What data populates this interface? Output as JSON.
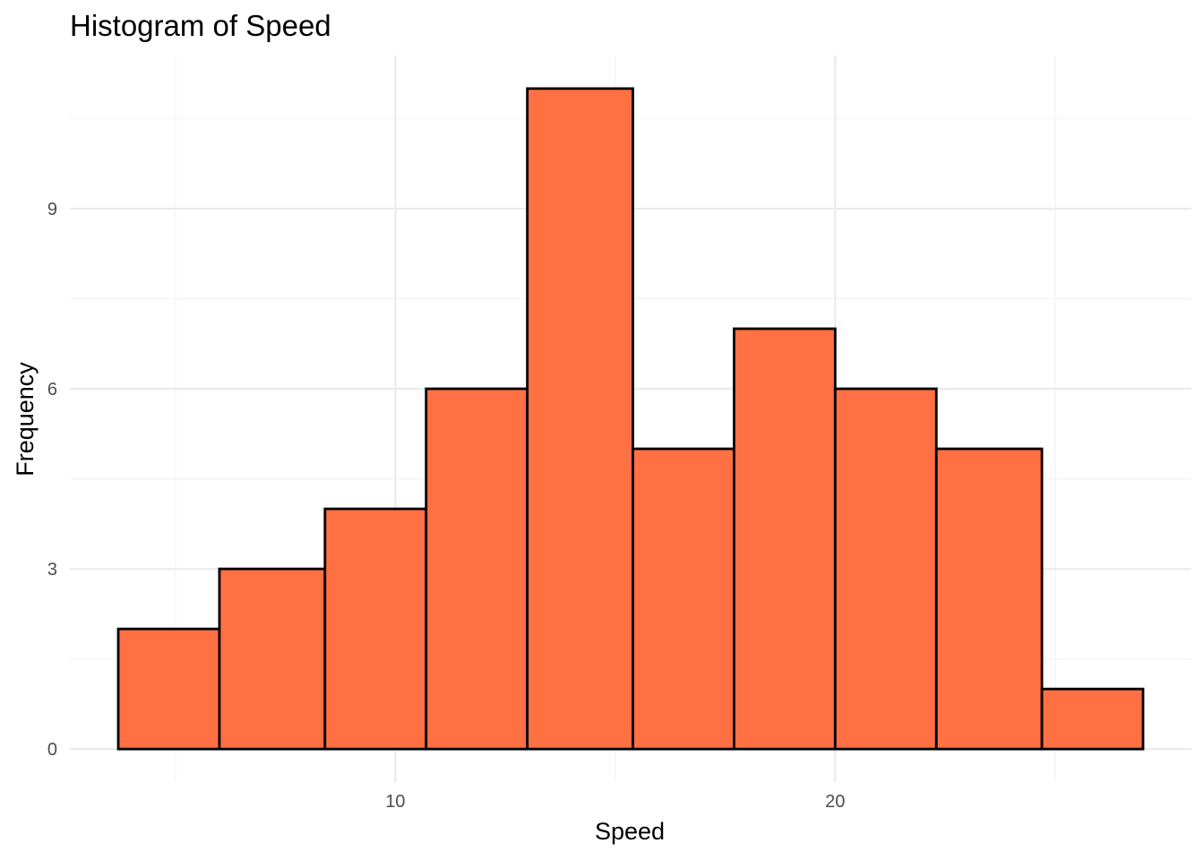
{
  "chart_data": {
    "type": "bar",
    "subtype": "histogram",
    "title": "Histogram of Speed",
    "xlabel": "Speed",
    "ylabel": "Frequency",
    "bins": [
      {
        "x0": 3.7,
        "x1": 6.0,
        "count": 2
      },
      {
        "x0": 6.0,
        "x1": 8.4,
        "count": 3
      },
      {
        "x0": 8.4,
        "x1": 10.7,
        "count": 4
      },
      {
        "x0": 10.7,
        "x1": 13.0,
        "count": 6
      },
      {
        "x0": 13.0,
        "x1": 15.4,
        "count": 11
      },
      {
        "x0": 15.4,
        "x1": 17.7,
        "count": 5
      },
      {
        "x0": 17.7,
        "x1": 20.0,
        "count": 7
      },
      {
        "x0": 20.0,
        "x1": 22.3,
        "count": 6
      },
      {
        "x0": 22.3,
        "x1": 24.7,
        "count": 5
      },
      {
        "x0": 24.7,
        "x1": 27.0,
        "count": 1
      }
    ],
    "xlim": [
      2.6,
      28.1
    ],
    "ylim": [
      -0.55,
      11.55
    ],
    "x_ticks": [
      10,
      20
    ],
    "x_tick_labels": [
      "10",
      "20"
    ],
    "x_minor_ticks": [
      5,
      15,
      25
    ],
    "y_ticks": [
      0,
      3,
      6,
      9
    ],
    "y_tick_labels": [
      "0",
      "3",
      "6",
      "9"
    ],
    "y_minor_ticks": [
      1.5,
      4.5,
      7.5,
      10.5
    ],
    "grid": true,
    "legend": "none",
    "bar_fill": "#FF7043",
    "bar_outline": "#000000",
    "background": "#ffffff"
  }
}
